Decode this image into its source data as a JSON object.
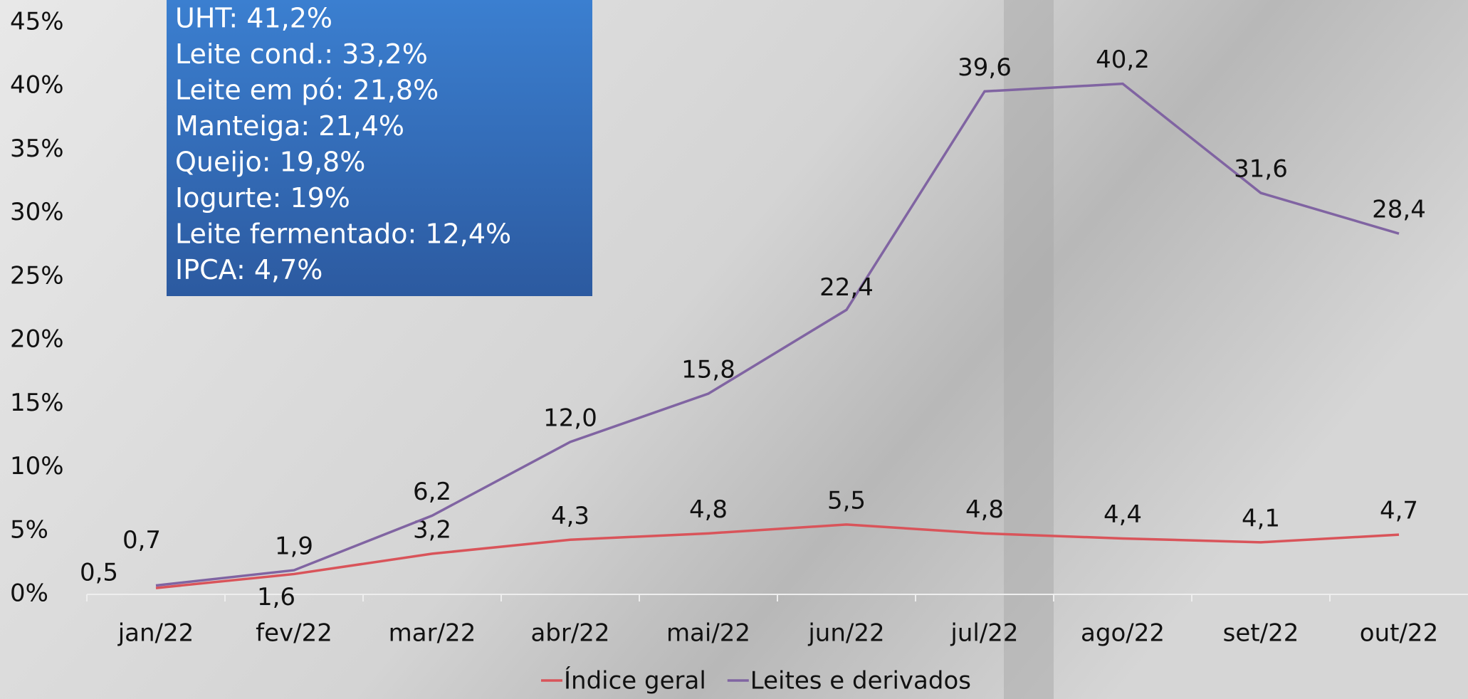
{
  "chart_data": {
    "type": "line",
    "categories": [
      "jan/22",
      "fev/22",
      "mar/22",
      "abr/22",
      "mai/22",
      "jun/22",
      "jul/22",
      "ago/22",
      "set/22",
      "out/22"
    ],
    "series": [
      {
        "name": "Índice geral",
        "color": "#d9545a",
        "values": [
          0.5,
          1.6,
          3.2,
          4.3,
          4.8,
          5.5,
          4.8,
          4.4,
          4.1,
          4.7
        ],
        "value_labels": [
          "0,5",
          "1,6",
          "3,2",
          "4,3",
          "4,8",
          "5,5",
          "4,8",
          "4,4",
          "4,1",
          "4,7"
        ]
      },
      {
        "name": "Leites e derivados",
        "color": "#8064a2",
        "values": [
          0.7,
          1.9,
          6.2,
          12.0,
          15.8,
          22.4,
          39.6,
          40.2,
          31.6,
          28.4
        ],
        "value_labels": [
          "0,7",
          "1,9",
          "6,2",
          "12,0",
          "15,8",
          "22,4",
          "39,6",
          "40,2",
          "31,6",
          "28,4"
        ]
      }
    ],
    "ylim": [
      0,
      45
    ],
    "yticks": [
      {
        "value": 0,
        "label": "0%"
      },
      {
        "value": 5,
        "label": "5%"
      },
      {
        "value": 10,
        "label": "10%"
      },
      {
        "value": 15,
        "label": "15%"
      },
      {
        "value": 20,
        "label": "20%"
      },
      {
        "value": 25,
        "label": "25%"
      },
      {
        "value": 30,
        "label": "30%"
      },
      {
        "value": 35,
        "label": "35%"
      },
      {
        "value": 40,
        "label": "40%"
      },
      {
        "value": 45,
        "label": "45%"
      }
    ],
    "annotation_lines": [
      "UHT: 41,2%",
      "Leite cond.: 33,2%",
      "Leite em pó: 21,8%",
      "Manteiga: 21,4%",
      "Queijo: 19,8%",
      "Iogurte: 19%",
      "Leite fermentado: 12,4%",
      "IPCA: 4,7%"
    ],
    "legend": "bottom"
  }
}
